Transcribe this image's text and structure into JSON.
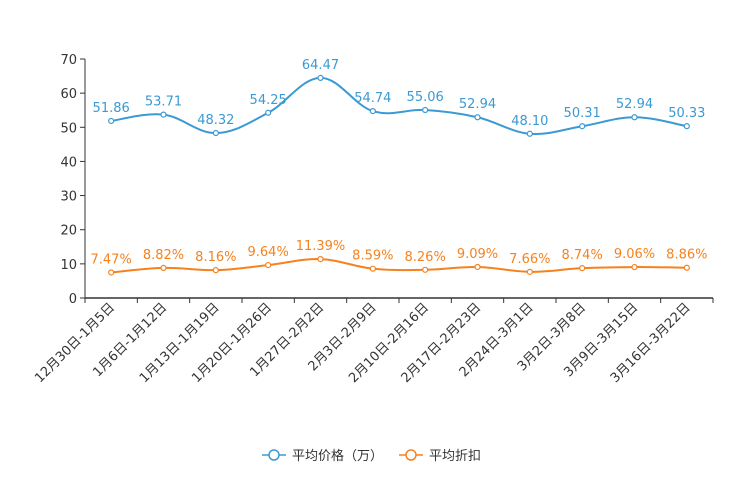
{
  "chart_data": {
    "type": "line",
    "title": "",
    "xlabel": "",
    "ylabel": "",
    "ylim": [
      0,
      70
    ],
    "yticks": [
      0,
      10,
      20,
      30,
      40,
      50,
      60,
      70
    ],
    "grid": false,
    "legend_position": "bottom-center",
    "categories": [
      "12月30日-1月5日",
      "1月6日-1月12日",
      "1月13日-1月19日",
      "1月20日-1月26日",
      "1月27日-2月2日",
      "2月3日-2月9日",
      "2月10日-2月16日",
      "2月17日-2月23日",
      "2月24日-3月1日",
      "3月2日-3月8日",
      "3月9日-3月15日",
      "3月16日-3月22日"
    ],
    "series": [
      {
        "name": "平均价格（万）",
        "color": "#3b9ad3",
        "values": [
          51.86,
          53.71,
          48.32,
          54.25,
          64.47,
          54.74,
          55.06,
          52.94,
          48.1,
          50.31,
          52.94,
          50.33
        ],
        "labels": [
          "51.86",
          "53.71",
          "48.32",
          "54.25",
          "64.47",
          "54.74",
          "55.06",
          "52.94",
          "48.10",
          "50.31",
          "52.94",
          "50.33"
        ]
      },
      {
        "name": "平均折扣",
        "color": "#f5821f",
        "values": [
          7.47,
          8.82,
          8.16,
          9.64,
          11.39,
          8.59,
          8.26,
          9.09,
          7.66,
          8.74,
          9.06,
          8.86
        ],
        "labels": [
          "7.47%",
          "8.82%",
          "8.16%",
          "9.64%",
          "11.39%",
          "8.59%",
          "8.26%",
          "9.09%",
          "7.66%",
          "8.74%",
          "9.06%",
          "8.86%"
        ]
      }
    ]
  }
}
